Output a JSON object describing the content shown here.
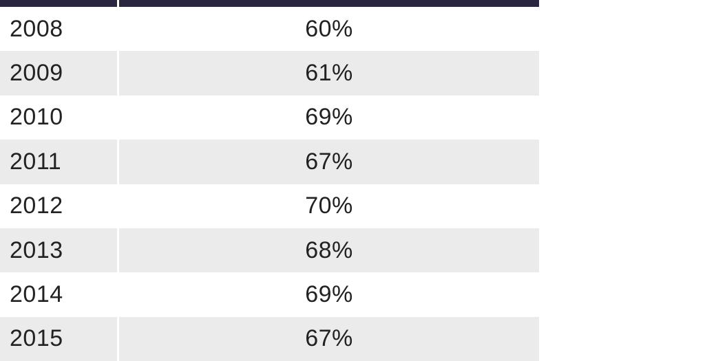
{
  "chart_data": {
    "type": "table",
    "columns": [
      "",
      ""
    ],
    "rows": [
      {
        "year": "2008",
        "value": "60%"
      },
      {
        "year": "2009",
        "value": "61%"
      },
      {
        "year": "2010",
        "value": "69%"
      },
      {
        "year": "2011",
        "value": "67%"
      },
      {
        "year": "2012",
        "value": "70%"
      },
      {
        "year": "2013",
        "value": "68%"
      },
      {
        "year": "2014",
        "value": "69%"
      },
      {
        "year": "2015",
        "value": "67%"
      }
    ]
  },
  "colors": {
    "header": "#2a2640",
    "row_alt": "#ebebeb",
    "row_base": "#ffffff",
    "text": "#222222"
  }
}
